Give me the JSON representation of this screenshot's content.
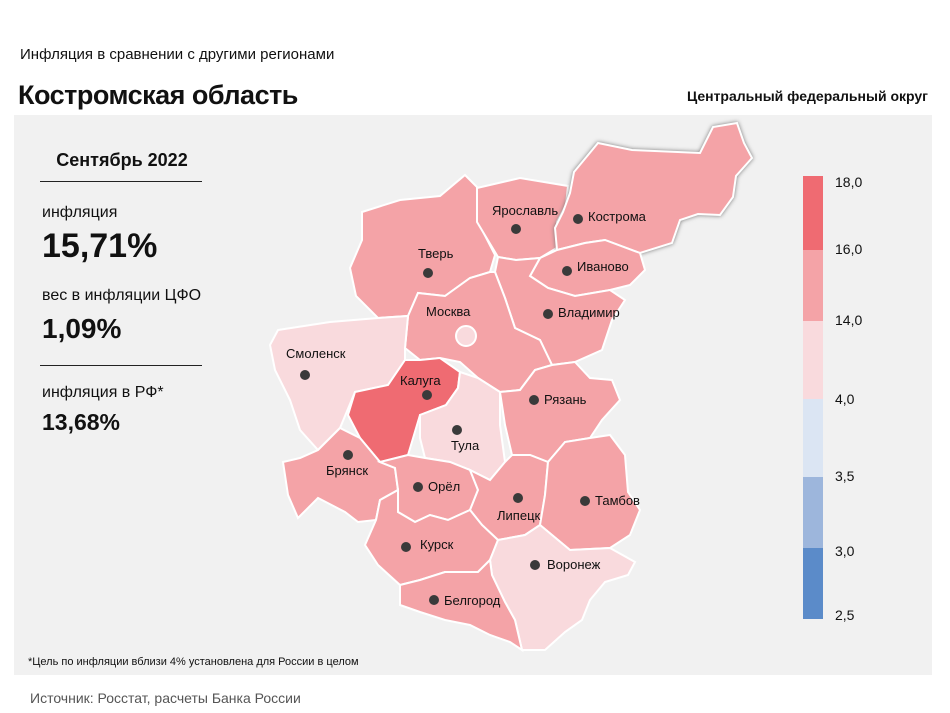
{
  "header": {
    "subtitle": "Инфляция  в сравнении  с другими  регионами",
    "title": "Костромская область",
    "district": "Центральный федеральный округ"
  },
  "stats": {
    "month": "Сентябрь 2022",
    "inflation_label": "инфляция",
    "inflation_value": "15,71%",
    "weight_label": "вес в инфляции  ЦФО",
    "weight_value": "1,09%",
    "russia_label": "инфляция  в РФ*",
    "russia_value": "13,68%"
  },
  "footnote": "*Цель по инфляции вблизи 4% установлена для России в целом",
  "source": "Источник: Росстат, расчеты Банка России",
  "highlighted_region": "Кострома",
  "regions": [
    {
      "name": "Ярославль",
      "color": "#f4a3a7"
    },
    {
      "name": "Кострома",
      "color": "#f4a3a7"
    },
    {
      "name": "Тверь",
      "color": "#f4a3a7"
    },
    {
      "name": "Иваново",
      "color": "#f4a3a7"
    },
    {
      "name": "Владимир",
      "color": "#f4a3a7"
    },
    {
      "name": "Москва",
      "color": "#f4a3a7"
    },
    {
      "name": "Смоленск",
      "color": "#f9dadd"
    },
    {
      "name": "Калуга",
      "color": "#ef6b72"
    },
    {
      "name": "Тула",
      "color": "#f9dadd"
    },
    {
      "name": "Рязань",
      "color": "#f4a3a7"
    },
    {
      "name": "Брянск",
      "color": "#f4a3a7"
    },
    {
      "name": "Орёл",
      "color": "#f4a3a7"
    },
    {
      "name": "Липецк",
      "color": "#f4a3a7"
    },
    {
      "name": "Тамбов",
      "color": "#f4a3a7"
    },
    {
      "name": "Курск",
      "color": "#f4a3a7"
    },
    {
      "name": "Воронеж",
      "color": "#f9dadd"
    },
    {
      "name": "Белгород",
      "color": "#f4a3a7"
    }
  ],
  "legend": {
    "labels": [
      "18,0",
      "16,0",
      "14,0",
      "4,0",
      "3,5",
      "3,0",
      "2,5"
    ],
    "bands": [
      {
        "color": "#ef6b72"
      },
      {
        "color": "#f4a3a7"
      },
      {
        "color": "#f9dadd"
      },
      {
        "color": "#dbe5f3"
      },
      {
        "color": "#9db6dc"
      },
      {
        "color": "#5b8bc9"
      }
    ]
  }
}
